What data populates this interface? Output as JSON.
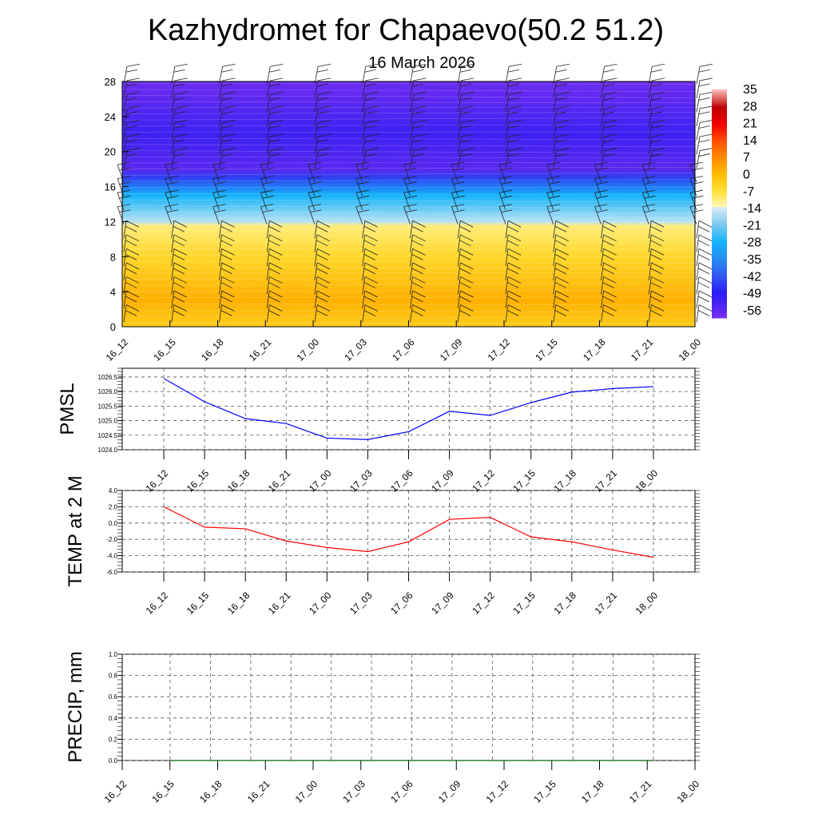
{
  "title": "Kazhydromet for Chapaevo(50.2 51.2)",
  "subtitle": "16 March 2026",
  "time_labels": [
    "16_12",
    "16_15",
    "16_18",
    "16_21",
    "17_00",
    "17_03",
    "17_06",
    "17_09",
    "17_12",
    "17_15",
    "17_18",
    "17_21",
    "18_00"
  ],
  "chart_data": [
    {
      "type": "heatmap",
      "title": "Temperature cross-section with wind barbs",
      "ylabel": "",
      "ylim": [
        0,
        28
      ],
      "yticks": [
        0,
        4,
        8,
        12,
        16,
        20,
        24,
        28
      ],
      "colorbar": {
        "ticks": [
          "35",
          "28",
          "21",
          "14",
          "7",
          "0",
          "-7",
          "-14",
          "-21",
          "-28",
          "-35",
          "-42",
          "-49",
          "-56"
        ],
        "range": [
          -60,
          35
        ]
      },
      "profile_by_height": [
        {
          "h": 0,
          "t": -3
        },
        {
          "h": 3,
          "t": 2
        },
        {
          "h": 8,
          "t": -5
        },
        {
          "h": 11.5,
          "t": -10
        },
        {
          "h": 12,
          "t": -16
        },
        {
          "h": 15,
          "t": -28
        },
        {
          "h": 17,
          "t": -45
        },
        {
          "h": 18,
          "t": -56
        },
        {
          "h": 22,
          "t": -52
        },
        {
          "h": 28,
          "t": -58
        }
      ]
    },
    {
      "type": "line",
      "ylabel": "PMSL",
      "ylim": [
        1024.0,
        1026.8
      ],
      "yticks": [
        "1024.0",
        "1024.5",
        "1025.0",
        "1025.5",
        "1026.0",
        "1026.5"
      ],
      "color": "#0000ff",
      "values": [
        1026.45,
        1025.65,
        1025.07,
        1024.9,
        1024.4,
        1024.35,
        1024.62,
        1025.32,
        1025.18,
        1025.62,
        1025.98,
        1026.1,
        1026.17
      ]
    },
    {
      "type": "line",
      "ylabel": "TEMP at 2 M",
      "ylim": [
        -6.0,
        4.0
      ],
      "yticks": [
        "-6.0",
        "-4.0",
        "-2.0",
        "0.0",
        "2.0",
        "4.0"
      ],
      "color": "#ff0000",
      "values": [
        2.0,
        -0.5,
        -0.7,
        -2.2,
        -3.0,
        -3.5,
        -2.3,
        0.45,
        0.7,
        -1.7,
        -2.3,
        -3.3,
        -4.2
      ]
    },
    {
      "type": "line",
      "ylabel": "PRECIP, mm",
      "ylim": [
        0.0,
        1.0
      ],
      "yticks": [
        "0.0",
        "0.2",
        "0.4",
        "0.6",
        "0.8",
        "1.0"
      ],
      "color": "#006400",
      "values": [
        0,
        0,
        0,
        0,
        0,
        0,
        0,
        0,
        0,
        0,
        0,
        0,
        0
      ]
    }
  ]
}
